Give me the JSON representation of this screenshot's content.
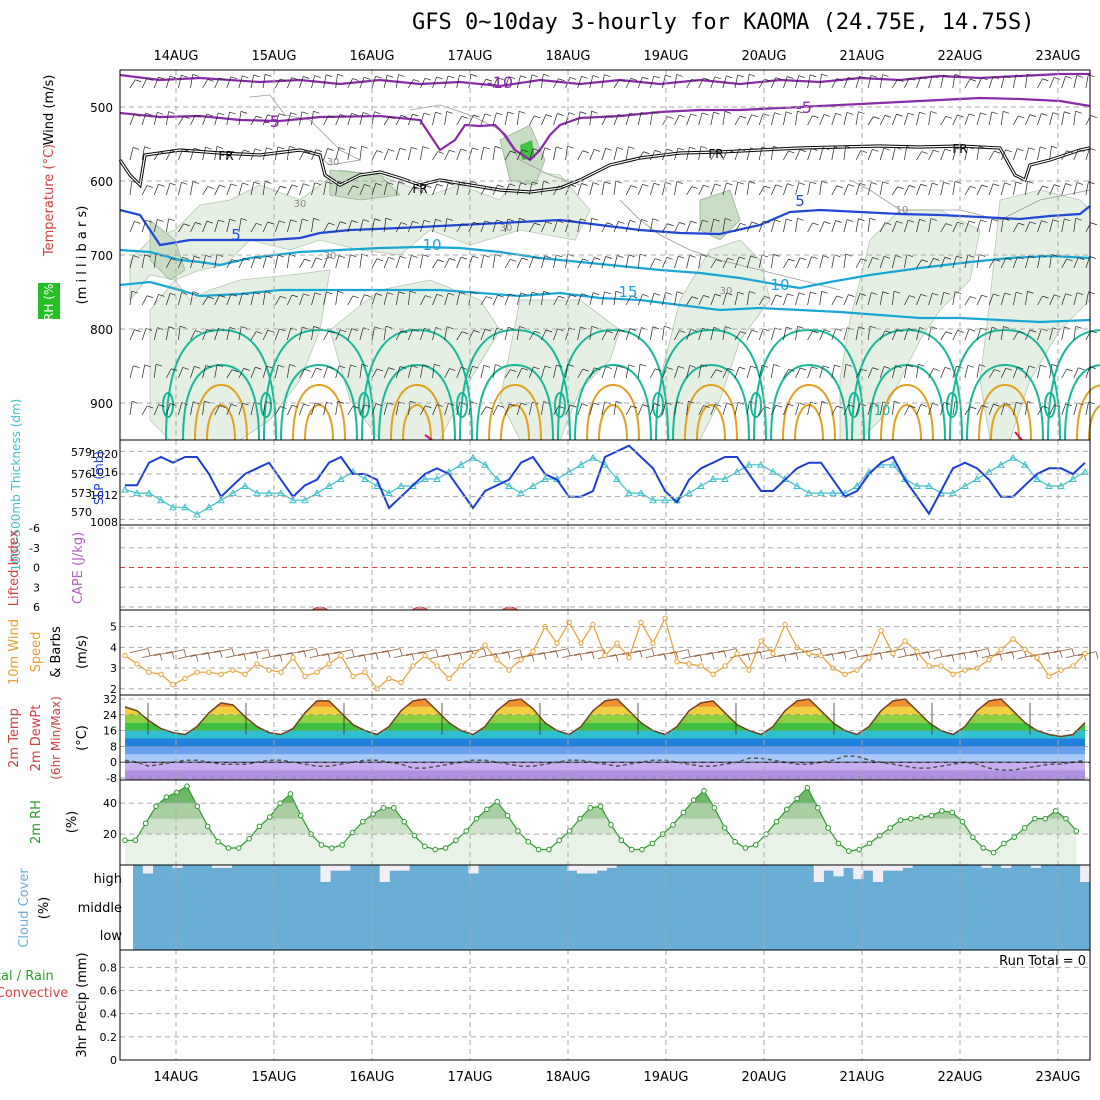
{
  "title": "GFS 0~10day 3-hourly for KAOMA (24.75E, 14.75S)",
  "dates": [
    "14AUG",
    "15AUG",
    "16AUG",
    "17AUG",
    "18AUG",
    "19AUG",
    "20AUG",
    "21AUG",
    "22AUG",
    "23AUG"
  ],
  "colors": {
    "grid": "#aaaaaa",
    "rh_fill": "#e6efe3",
    "rh_fill_dark": "#c9dcc4",
    "temp_purple": "#8a2aa8",
    "temp_blue": "#1f48d6",
    "temp_cyan": "#18a6d6",
    "temp_teal": "#17b89a",
    "temp_orange": "#e0a020",
    "slp_line": "#1c3ed6",
    "thickness_line": "#3ec0cc",
    "wind_speed": "#e8a030",
    "barb_brown": "#8c5a3a",
    "rh2m_line": "#2e9a2e",
    "cloud_blue": "#6aaed6",
    "precip_text": "#000000"
  },
  "panels": {
    "upper": {
      "ylabel_left_1": "RH (%)",
      "ylabel_left_2": "Temperature (°C)",
      "ylabel_left_3": "Wind (m/s)",
      "ylabel": "(m i l l i b a r s)",
      "yticks": [
        "500",
        "600",
        "700",
        "800",
        "900"
      ],
      "contour_labels": [
        "-10",
        "-5",
        "-5",
        "FR",
        "FR",
        "FR",
        "FR",
        "5",
        "5",
        "10",
        "10",
        "10",
        "15",
        "30",
        "30",
        "30",
        "30",
        "30",
        "10"
      ]
    },
    "slp": {
      "ylabel_left": "1000-500mb Thickness (dm)",
      "ylabel_right": "SLP (mb)",
      "yticks_left": [
        "579",
        "576",
        "573",
        "570"
      ],
      "yticks_right": [
        "1020",
        "1016",
        "1012",
        "1008"
      ]
    },
    "cape": {
      "ylabel_left": "Lifted Index",
      "ylabel_right": "CAPE (J/kg)",
      "yticks": [
        "-6",
        "-3",
        "0",
        "3",
        "6"
      ]
    },
    "wind10m": {
      "ylabel_1": "10m Wind",
      "ylabel_2": "Speed",
      "ylabel_3": "& Barbs",
      "ylabel_unit": "(m/s)",
      "yticks": [
        "5",
        "4",
        "3",
        "2"
      ]
    },
    "temp2m": {
      "ylabel_1": "2m Temp",
      "ylabel_2": "2m DewPt",
      "ylabel_3": "(6hr Min/Max)",
      "ylabel_unit": "(°C)",
      "yticks": [
        "32",
        "24",
        "16",
        "8",
        "0",
        "-8"
      ]
    },
    "rh2m": {
      "ylabel": "2m RH",
      "ylabel_unit": "(%)",
      "yticks": [
        "40",
        "20"
      ]
    },
    "cloud": {
      "ylabel": "Cloud Cover",
      "ylabel_unit": "(%)",
      "levels": [
        "high",
        "middle",
        "low"
      ]
    },
    "precip": {
      "ylabel_left_1": "Total / Rain",
      "ylabel_left_2": "Convective",
      "ylabel": "3hr Precip (mm)",
      "yticks": [
        "0.8",
        "0.6",
        "0.4",
        "0.2",
        "0"
      ],
      "run_total": "Run Total = 0"
    }
  },
  "chart_data": [
    {
      "type": "line",
      "name": "sea level pressure",
      "units": "mb",
      "ylim": [
        1007,
        1022
      ],
      "values": [
        1014,
        1014,
        1018,
        1019,
        1018,
        1019,
        1019,
        1016,
        1012,
        1014,
        1016,
        1017,
        1018,
        1015,
        1012,
        1014,
        1015,
        1018,
        1019,
        1016,
        1016,
        1015,
        1010,
        1012,
        1014,
        1016,
        1017,
        1016,
        1013,
        1010,
        1013,
        1014,
        1015,
        1018,
        1019,
        1016,
        1015,
        1012,
        1012,
        1013,
        1019,
        1020,
        1021,
        1019,
        1017,
        1013,
        1011,
        1015,
        1017,
        1018,
        1019,
        1019,
        1016,
        1013,
        1013,
        1015,
        1017,
        1018,
        1018,
        1015,
        1012,
        1013,
        1016,
        1018,
        1019,
        1015,
        1012,
        1009,
        1013,
        1017,
        1018,
        1017,
        1015,
        1012,
        1012,
        1014,
        1016,
        1017,
        1017,
        1016,
        1018
      ]
    },
    {
      "type": "line",
      "name": "1000-500mb thickness",
      "units": "dm",
      "ylim": [
        568.5,
        580.5
      ],
      "values": [
        573.5,
        573,
        573,
        572,
        571,
        571,
        570,
        571,
        572,
        573,
        574,
        573,
        573,
        573,
        572,
        572,
        573,
        574,
        575,
        576,
        575,
        574,
        573,
        574,
        574,
        575,
        575,
        576,
        577,
        578,
        577,
        575,
        574,
        573,
        574,
        575,
        575,
        576,
        577,
        578,
        577,
        575,
        573,
        573,
        572,
        572,
        572,
        573,
        574,
        575,
        575,
        576,
        577,
        577,
        576,
        575,
        574,
        573,
        573,
        573,
        573,
        574,
        576,
        577,
        577,
        575,
        574,
        574,
        573,
        573,
        574,
        575,
        576,
        577,
        578,
        577,
        575,
        574,
        574,
        575,
        576
      ]
    },
    {
      "type": "line",
      "name": "10m wind speed",
      "units": "m/s",
      "ylim": [
        1.7,
        5.8
      ],
      "values": [
        3.6,
        3.2,
        2.8,
        2.7,
        2.2,
        2.5,
        2.8,
        2.8,
        2.7,
        2.9,
        2.7,
        3.2,
        2.9,
        2.8,
        3.5,
        2.6,
        2.8,
        3.2,
        3.6,
        2.6,
        2.8,
        2.0,
        2.5,
        2.3,
        3.1,
        3.6,
        3.1,
        2.5,
        3.1,
        3.6,
        4.1,
        3.4,
        2.9,
        3.4,
        3.8,
        5.0,
        4.2,
        5.2,
        4.2,
        5.1,
        3.6,
        4.2,
        3.5,
        5.2,
        4.2,
        5.4,
        3.3,
        3.2,
        3.1,
        2.7,
        3.1,
        3.7,
        2.9,
        4.3,
        3.7,
        5.1,
        4.0,
        3.7,
        3.6,
        3.0,
        2.7,
        2.9,
        3.5,
        4.8,
        3.7,
        4.3,
        3.8,
        3.1,
        3.1,
        2.7,
        2.9,
        3.0,
        3.4,
        3.9,
        4.4,
        3.9,
        3.5,
        2.6,
        2.9,
        3.1,
        3.7
      ]
    },
    {
      "type": "area",
      "name": "2m temperature",
      "units": "°C",
      "ylim": [
        -9,
        34
      ],
      "values": [
        28,
        26,
        21,
        17,
        15,
        14,
        18,
        25,
        30,
        29,
        23,
        18,
        15,
        14,
        17,
        25,
        31,
        31,
        25,
        19,
        16,
        14,
        18,
        26,
        31,
        32,
        26,
        20,
        16,
        14,
        18,
        26,
        31,
        32,
        27,
        20,
        16,
        14,
        18,
        26,
        31,
        32,
        26,
        20,
        16,
        14,
        18,
        26,
        30,
        31,
        25,
        19,
        16,
        14,
        18,
        26,
        31,
        32,
        26,
        20,
        16,
        14,
        18,
        26,
        31,
        32,
        26,
        20,
        16,
        14,
        18,
        26,
        31,
        32,
        26,
        20,
        16,
        14,
        13,
        14,
        20
      ]
    },
    {
      "type": "line",
      "name": "2m dew point",
      "units": "°C",
      "ylim": [
        -9,
        34
      ],
      "values": [
        1,
        0,
        -2,
        -1,
        0,
        1,
        1,
        0,
        -1,
        -1,
        -1,
        0,
        1,
        1,
        0,
        -1,
        -2,
        -2,
        -1,
        0,
        1,
        1,
        0,
        -1,
        -3,
        -3,
        -2,
        -1,
        0,
        1,
        1,
        0,
        -1,
        -2,
        -2,
        -1,
        0,
        1,
        1,
        0,
        -1,
        -2,
        -1,
        0,
        1,
        1,
        0,
        -1,
        -2,
        -2,
        -1,
        0,
        2,
        2,
        1,
        0,
        -1,
        -1,
        0,
        1,
        3,
        3,
        1,
        0,
        -1,
        -2,
        -3,
        -3,
        -2,
        -1,
        0,
        -1,
        -3,
        -4,
        -4,
        -3,
        -2,
        -1,
        -1,
        0,
        1
      ]
    },
    {
      "type": "area",
      "name": "2m relative humidity",
      "units": "%",
      "ylim": [
        0,
        55
      ],
      "values": [
        16,
        16,
        27,
        38,
        44,
        47,
        51,
        38,
        25,
        15,
        11,
        11,
        17,
        25,
        31,
        40,
        46,
        32,
        20,
        13,
        11,
        13,
        21,
        28,
        33,
        37,
        37,
        28,
        19,
        12,
        10,
        11,
        16,
        22,
        30,
        36,
        41,
        32,
        22,
        15,
        10,
        10,
        16,
        22,
        30,
        37,
        38,
        26,
        16,
        10,
        10,
        14,
        20,
        26,
        34,
        42,
        48,
        37,
        24,
        15,
        11,
        13,
        20,
        28,
        36,
        43,
        50,
        37,
        24,
        14,
        9,
        10,
        14,
        19,
        24,
        29,
        30,
        31,
        32,
        35,
        34,
        28,
        18,
        11,
        8,
        14,
        18,
        24,
        30,
        30,
        35,
        30,
        22
      ]
    },
    {
      "type": "bar",
      "name": "high cloud cover",
      "units": "%",
      "ylim": [
        0,
        100
      ],
      "values": [
        0,
        30,
        0,
        0,
        10,
        0,
        0,
        0,
        10,
        10,
        0,
        0,
        0,
        0,
        0,
        0,
        0,
        0,
        0,
        60,
        20,
        20,
        0,
        0,
        0,
        60,
        20,
        20,
        0,
        0,
        0,
        0,
        0,
        0,
        30,
        0,
        0,
        0,
        0,
        0,
        0,
        0,
        0,
        0,
        20,
        30,
        30,
        20,
        10,
        0,
        0,
        0,
        0,
        0,
        0,
        0,
        0,
        0,
        0,
        0,
        0,
        0,
        0,
        0,
        0,
        0,
        0,
        0,
        0,
        60,
        20,
        40,
        10,
        50,
        20,
        60,
        20,
        20,
        10,
        0,
        0,
        0,
        0,
        0,
        0,
        0,
        10,
        0,
        10,
        0,
        0,
        10,
        0,
        0,
        0,
        0,
        60
      ]
    },
    {
      "type": "bar",
      "name": "3hr precipitation",
      "units": "mm",
      "ylim": [
        0,
        0.95
      ],
      "values": [
        0,
        0,
        0,
        0,
        0,
        0,
        0,
        0,
        0,
        0,
        0,
        0,
        0,
        0,
        0,
        0,
        0,
        0,
        0,
        0,
        0,
        0,
        0,
        0,
        0,
        0,
        0,
        0,
        0,
        0,
        0,
        0,
        0,
        0,
        0,
        0,
        0,
        0,
        0,
        0,
        0,
        0,
        0,
        0,
        0,
        0,
        0,
        0,
        0,
        0,
        0,
        0,
        0,
        0,
        0,
        0,
        0,
        0,
        0,
        0,
        0,
        0,
        0,
        0,
        0,
        0,
        0,
        0,
        0,
        0,
        0,
        0,
        0,
        0,
        0,
        0,
        0,
        0,
        0,
        0,
        0
      ]
    }
  ]
}
